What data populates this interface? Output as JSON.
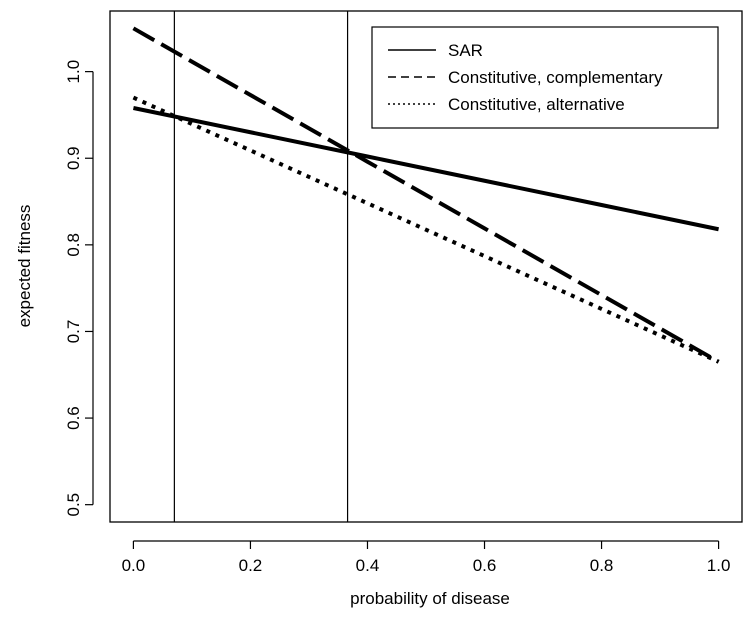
{
  "chart_data": {
    "type": "line",
    "xlabel": "probability of disease",
    "ylabel": "expected fitness",
    "xlim": [
      -0.04,
      1.04
    ],
    "ylim": [
      0.48,
      1.07
    ],
    "x_ticks": [
      0.0,
      0.2,
      0.4,
      0.6,
      0.8,
      1.0
    ],
    "x_tick_labels": [
      "0.0",
      "0.2",
      "0.4",
      "0.6",
      "0.8",
      "1.0"
    ],
    "y_ticks": [
      0.5,
      0.6,
      0.7,
      0.8,
      0.9,
      1.0
    ],
    "y_tick_labels": [
      "0.5",
      "0.6",
      "0.7",
      "0.8",
      "0.9",
      "1.0"
    ],
    "vlines": [
      0.07,
      0.366
    ],
    "grid": false,
    "legend_position": "top-right",
    "series": [
      {
        "name": "SAR",
        "style": "solid",
        "x": [
          0.0,
          0.2,
          0.4,
          0.6,
          0.8,
          1.0
        ],
        "y": [
          0.958,
          0.93,
          0.902,
          0.874,
          0.846,
          0.818
        ]
      },
      {
        "name": "Constitutive, complementary",
        "style": "dashed",
        "x": [
          0.0,
          0.2,
          0.4,
          0.6,
          0.8,
          1.0
        ],
        "y": [
          1.05,
          0.973,
          0.896,
          0.819,
          0.742,
          0.665
        ]
      },
      {
        "name": "Constitutive, alternative",
        "style": "dotted",
        "x": [
          0.0,
          0.2,
          0.4,
          0.6,
          0.8,
          1.0
        ],
        "y": [
          0.97,
          0.909,
          0.848,
          0.787,
          0.726,
          0.665
        ]
      }
    ]
  }
}
